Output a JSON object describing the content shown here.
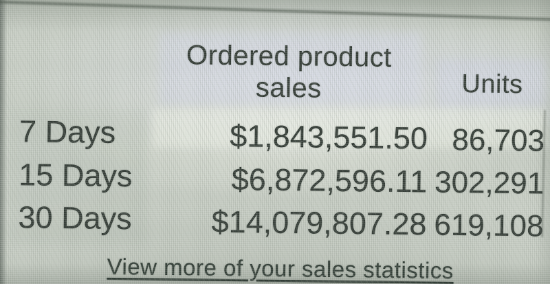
{
  "widget": {
    "sales_header": "Ordered product sales",
    "units_header": "Units",
    "rows": [
      {
        "period": "7 Days",
        "sales": "$1,843,551.50",
        "units": "86,703"
      },
      {
        "period": "15 Days",
        "sales": "$6,872,596.11",
        "units": "302,291"
      },
      {
        "period": "30 Days",
        "sales": "$14,079,807.28",
        "units": "619,108"
      }
    ],
    "footer_link": "View more of your sales statistics"
  },
  "colors": {
    "bg": "#c9cfc6",
    "text": "#3a423c",
    "link": "#39443d"
  }
}
